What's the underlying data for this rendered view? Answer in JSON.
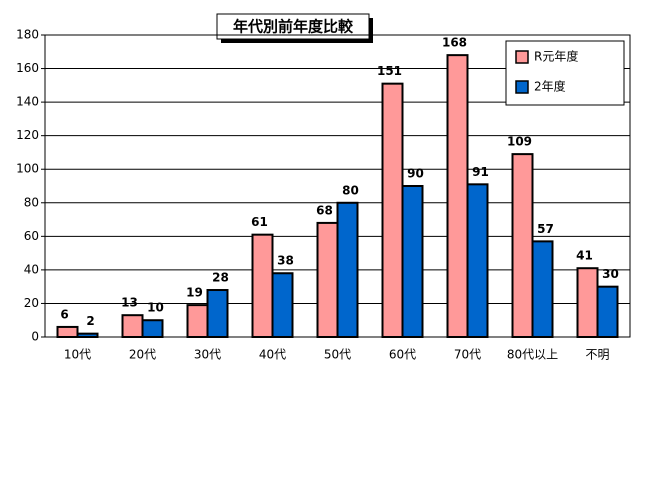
{
  "chart_data": {
    "type": "bar",
    "title": "年代別前年度比較",
    "categories": [
      "10代",
      "20代",
      "30代",
      "40代",
      "50代",
      "60代",
      "70代",
      "80代以上",
      "不明"
    ],
    "series": [
      {
        "name": "R元年度",
        "color": "#ff9999",
        "values": [
          6,
          13,
          19,
          61,
          68,
          151,
          168,
          109,
          41
        ]
      },
      {
        "name": "2年度",
        "color": "#0066cc",
        "values": [
          2,
          10,
          28,
          38,
          80,
          90,
          91,
          57,
          30
        ]
      }
    ],
    "ylim": [
      0,
      180
    ],
    "yticks": [
      0,
      20,
      40,
      60,
      80,
      100,
      120,
      140,
      160,
      180
    ],
    "grid": true,
    "legend": "upper right",
    "data_labels": true
  }
}
